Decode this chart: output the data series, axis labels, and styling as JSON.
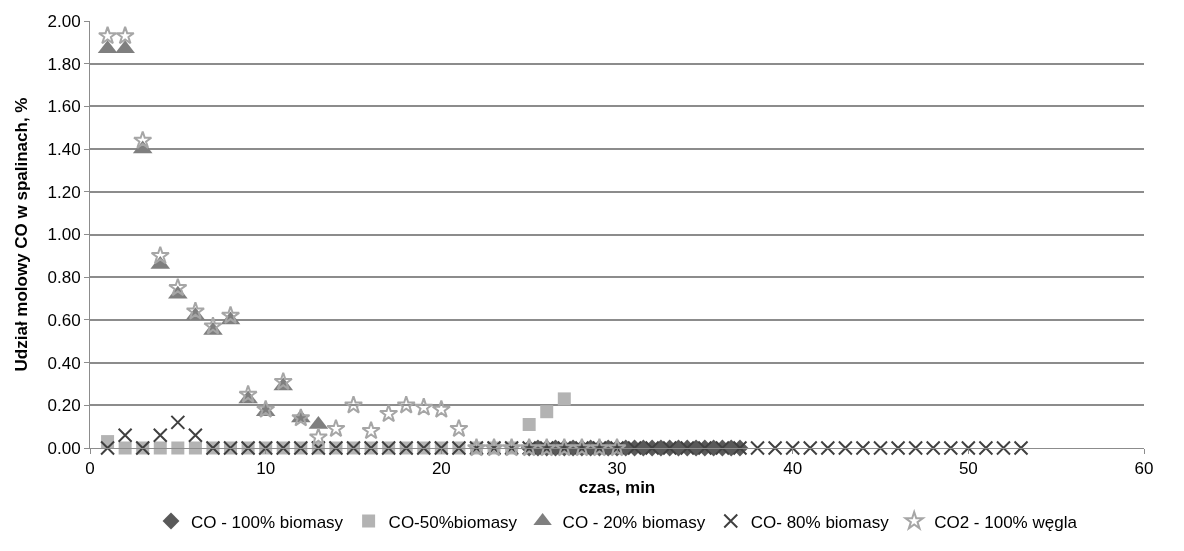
{
  "chart_data": {
    "type": "scatter",
    "xlabel": "czas, min",
    "ylabel": "Udział molowy CO w spalinach, %",
    "xlim": [
      0,
      60
    ],
    "xticks": [
      0,
      10,
      20,
      30,
      40,
      50,
      60
    ],
    "ylim": [
      0,
      2
    ],
    "yticks": [
      {
        "value": 0,
        "label": "0.00"
      },
      {
        "value": 0.2,
        "label": "0.20"
      },
      {
        "value": 0.4,
        "label": "0.40"
      },
      {
        "value": 0.6,
        "label": "0.60"
      },
      {
        "value": 0.8,
        "label": "0.80"
      },
      {
        "value": 1,
        "label": "1.00"
      },
      {
        "value": 1.2,
        "label": "1.20"
      },
      {
        "value": 1.4,
        "label": "1.40"
      },
      {
        "value": 1.6,
        "label": "1.60"
      },
      {
        "value": 1.8,
        "label": "1.80"
      },
      {
        "value": 2,
        "label": "2.00"
      }
    ],
    "grid": "y",
    "legend": "bottom",
    "series": [
      {
        "name": "CO - 100% biomasy",
        "color": "#595959",
        "marker": "diamond",
        "x": [
          25,
          25.5,
          26,
          26.5,
          27,
          27.5,
          28,
          28.5,
          29,
          29.5,
          30,
          30.5,
          31,
          31.5,
          32,
          32.5,
          33,
          33.5,
          34,
          34.5,
          35,
          35.5,
          36,
          36.5,
          37
        ],
        "values": [
          0,
          0,
          0,
          0,
          0,
          0,
          0,
          0,
          0,
          0,
          0,
          0,
          0,
          0,
          0,
          0,
          0,
          0,
          0,
          0,
          0,
          0,
          0,
          0,
          0
        ]
      },
      {
        "name": "CO-50%biomasy",
        "color": "#b3b3b3",
        "marker": "square",
        "x": [
          1,
          2,
          3,
          4,
          5,
          6,
          7,
          8,
          9,
          10,
          11,
          12,
          13,
          14,
          15,
          16,
          17,
          18,
          19,
          20,
          21,
          22,
          23,
          24,
          25,
          26,
          27
        ],
        "values": [
          0.03,
          0,
          0,
          0,
          0,
          0,
          0,
          0,
          0,
          0,
          0,
          0,
          0,
          0,
          0,
          0,
          0,
          0,
          0,
          0,
          0,
          0,
          0,
          0,
          0.11,
          0.17,
          0.23
        ]
      },
      {
        "name": "CO - 20% biomasy",
        "color": "#7f7f7f",
        "marker": "triangle",
        "x": [
          1,
          2,
          3,
          4,
          5,
          6,
          7,
          8,
          9,
          10,
          11,
          12,
          13
        ],
        "values": [
          1.87,
          1.87,
          1.4,
          0.86,
          0.72,
          0.62,
          0.55,
          0.6,
          0.23,
          0.17,
          0.29,
          0.14,
          0.11
        ]
      },
      {
        "name": "CO- 80% biomasy",
        "color": "#404040",
        "marker": "cross",
        "x": [
          1,
          2,
          3,
          4,
          5,
          6,
          7,
          8,
          9,
          10,
          11,
          12,
          13,
          14,
          15,
          16,
          17,
          18,
          19,
          20,
          21,
          22,
          23,
          24,
          25,
          26,
          27,
          28,
          29,
          30,
          31,
          32,
          33,
          34,
          35,
          36,
          37,
          38,
          39,
          40,
          41,
          42,
          43,
          44,
          45,
          46,
          47,
          48,
          49,
          50,
          51,
          52,
          53
        ],
        "values": [
          0,
          0.06,
          0,
          0.06,
          0.12,
          0.06,
          0,
          0,
          0,
          0,
          0,
          0,
          0,
          0,
          0,
          0,
          0,
          0,
          0,
          0,
          0,
          0,
          0,
          0,
          0,
          0,
          0,
          0,
          0,
          0,
          0,
          0,
          0,
          0,
          0,
          0,
          0,
          0,
          0,
          0,
          0,
          0,
          0,
          0,
          0,
          0,
          0,
          0,
          0,
          0,
          0,
          0,
          0
        ]
      },
      {
        "name": "CO2 - 100% węgla",
        "color": "#a6a6a6",
        "marker": "star",
        "x": [
          1,
          2,
          3,
          4,
          5,
          6,
          7,
          8,
          9,
          10,
          11,
          12,
          13,
          14,
          15,
          16,
          17,
          18,
          19,
          20,
          21,
          22,
          23,
          24,
          25,
          26,
          27,
          28,
          29,
          30
        ],
        "values": [
          1.93,
          1.93,
          1.44,
          0.9,
          0.75,
          0.64,
          0.57,
          0.62,
          0.25,
          0.18,
          0.31,
          0.14,
          0.05,
          0.09,
          0.2,
          0.08,
          0.16,
          0.2,
          0.19,
          0.18,
          0.09,
          0,
          0,
          0,
          0,
          0,
          0,
          0,
          0,
          0
        ]
      }
    ]
  }
}
